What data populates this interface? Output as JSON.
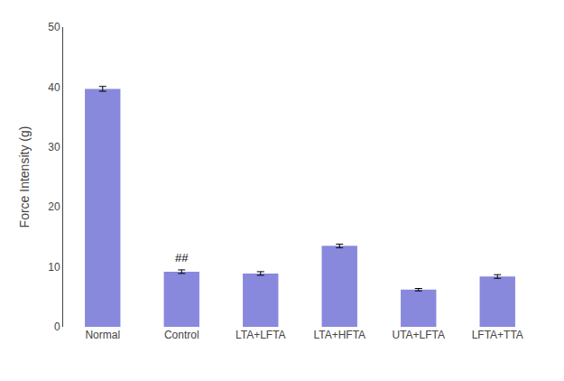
{
  "chart_data": {
    "type": "bar",
    "categories": [
      "Normal",
      "Control",
      "LTA+LFTA",
      "LTA+HFTA",
      "UTA+LFTA",
      "LFTA+TTA"
    ],
    "values": [
      39.7,
      9.2,
      8.9,
      13.5,
      6.2,
      8.4
    ],
    "errors": [
      0.4,
      0.3,
      0.3,
      0.3,
      0.2,
      0.3
    ],
    "color": "#8888dd",
    "ylabel": "Force Intensity (g)",
    "ylim": [
      0,
      50
    ],
    "yticks": [
      0,
      10,
      20,
      30,
      40,
      50
    ],
    "grid": false,
    "annotations": [
      {
        "text": "##",
        "category": "Control"
      }
    ]
  }
}
